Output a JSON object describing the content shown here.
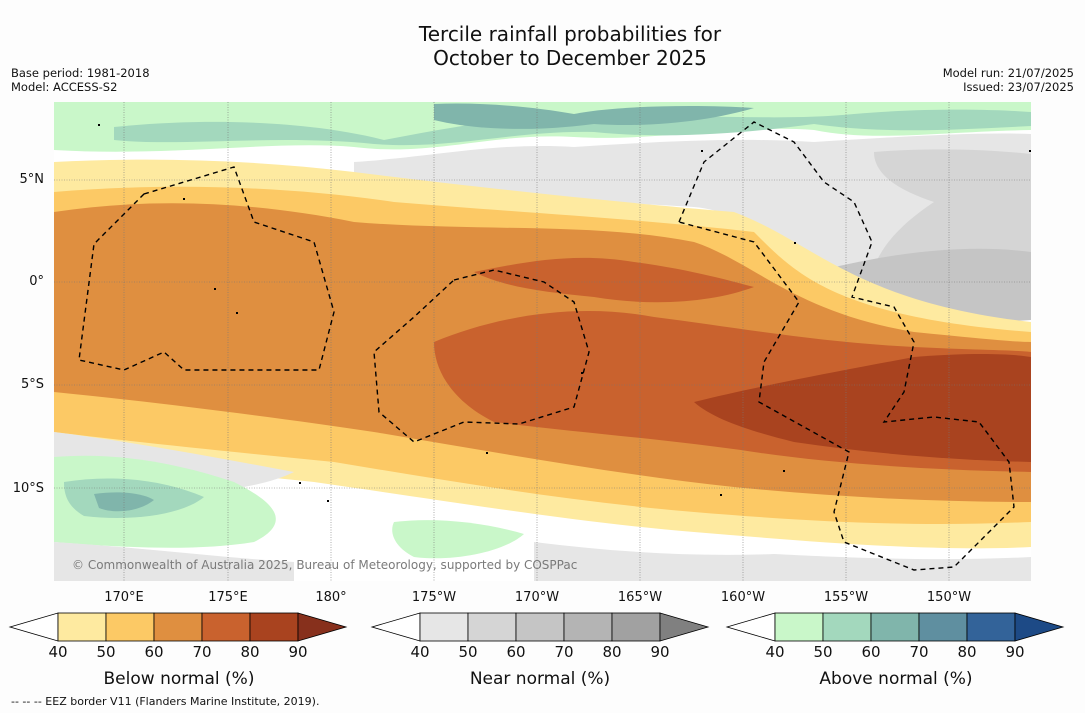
{
  "title": {
    "line1": "Tercile rainfall probabilities for",
    "line2": "October to December 2025"
  },
  "meta_left": {
    "base_period": "Base period: 1981-2018",
    "model": "Model: ACCESS-S2"
  },
  "meta_right": {
    "model_run": "Model run: 21/07/2025",
    "issued": "Issued: 23/07/2025"
  },
  "map": {
    "lat_labels": [
      "5°N",
      "0°",
      "5°S",
      "10°S"
    ],
    "lon_labels": [
      "170°E",
      "175°E",
      "180°",
      "175°W",
      "170°W",
      "165°W",
      "160°W",
      "155°W",
      "150°W"
    ],
    "copyright": "© Commonwealth of Australia 2025, Bureau of Meteorology, supported by COSPPac"
  },
  "colorbars": [
    {
      "title": "Below normal (%)",
      "ticks": [
        "40",
        "50",
        "60",
        "70",
        "80",
        "90"
      ],
      "colors": [
        "#ffffff",
        "#feeaa0",
        "#fcc965",
        "#df8f40",
        "#c9622e",
        "#a9431f",
        "#87301c"
      ]
    },
    {
      "title": "Near normal (%)",
      "ticks": [
        "40",
        "50",
        "60",
        "70",
        "80",
        "90"
      ],
      "colors": [
        "#ffffff",
        "#e6e6e6",
        "#d5d5d5",
        "#c5c5c5",
        "#b4b4b4",
        "#a1a1a1",
        "#808080"
      ]
    },
    {
      "title": "Above normal (%)",
      "ticks": [
        "40",
        "50",
        "60",
        "70",
        "80",
        "90"
      ],
      "colors": [
        "#ffffff",
        "#c9f7c9",
        "#a3d8bd",
        "#80b5ab",
        "#5f8fa0",
        "#336399",
        "#1d4a86"
      ]
    }
  ],
  "footnote": "-- -- -- EEZ border V11 (Flanders Marine Institute, 2019)."
}
